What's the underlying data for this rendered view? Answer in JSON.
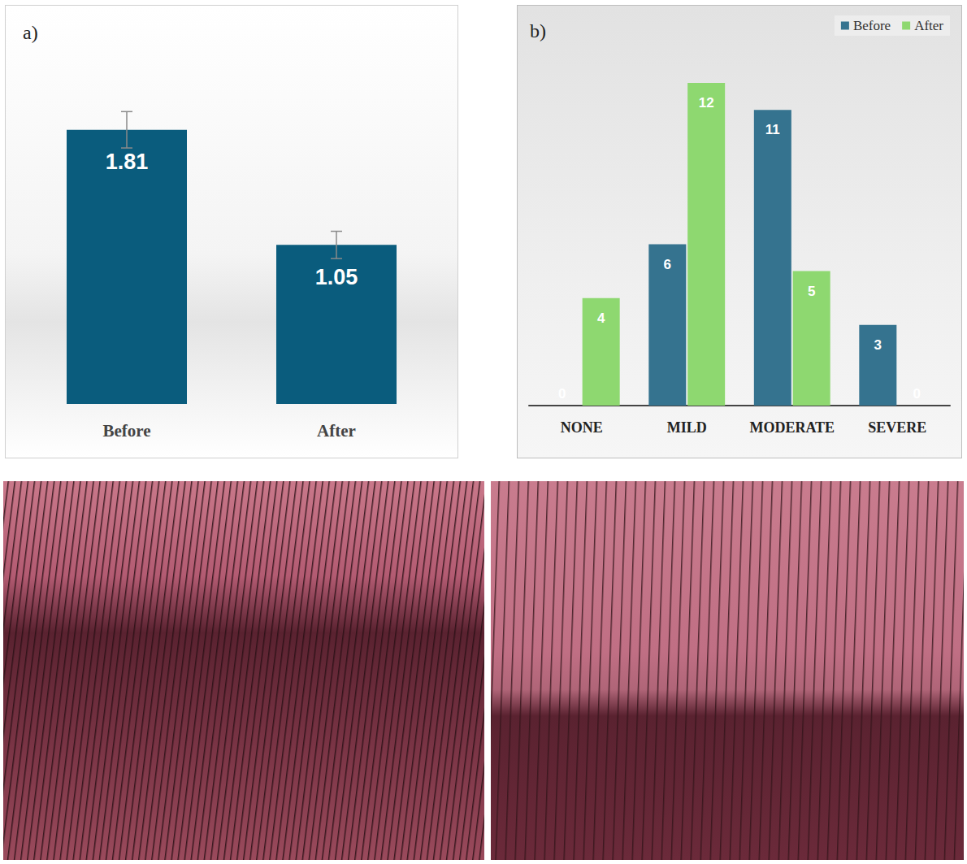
{
  "chart_data": [
    {
      "type": "bar",
      "title": "a)",
      "categories": [
        "Before",
        "After"
      ],
      "values": [
        1.81,
        1.05
      ],
      "errors": [
        0.12,
        0.09
      ],
      "color": "#0a5c7d",
      "ylim": [
        0,
        2.2
      ],
      "tick_labels": "x",
      "data_labels": true,
      "grid": false
    },
    {
      "type": "bar",
      "title": "b)",
      "categories": [
        "NONE",
        "MILD",
        "MODERATE",
        "SEVERE"
      ],
      "series": [
        {
          "name": "Before",
          "color": "#35738f",
          "values": [
            0,
            6,
            11,
            3
          ]
        },
        {
          "name": "After",
          "color": "#8ed870",
          "values": [
            4,
            12,
            5,
            0
          ]
        }
      ],
      "ylim": [
        0,
        13
      ],
      "tick_labels": "x",
      "data_labels": true,
      "legend": "top-right",
      "grid": false
    }
  ]
}
